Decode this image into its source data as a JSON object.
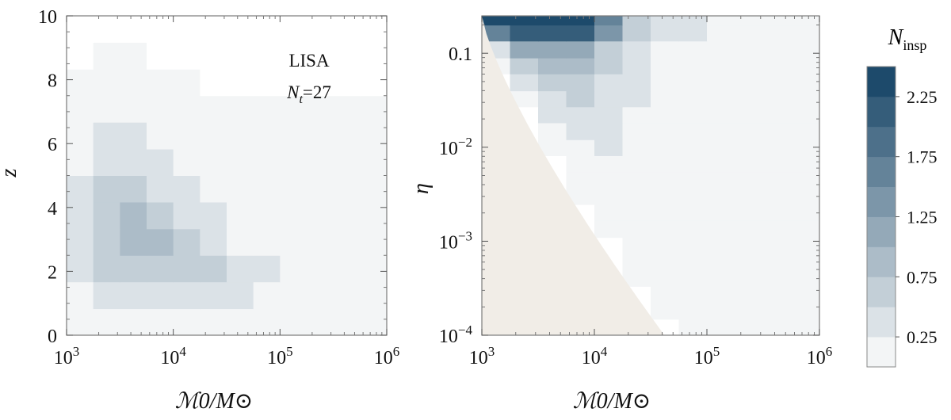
{
  "chart_data": [
    {
      "type": "heatmap",
      "panel": "left",
      "annotation": {
        "line1": "LISA",
        "line2_symbol": "N",
        "line2_sub": "t",
        "line2_value": "=27"
      },
      "xlabel": "ℳ0/M⊙",
      "ylabel": "z",
      "x_scale": "log",
      "xlim": [
        1000,
        1000000
      ],
      "ylim": [
        0,
        10
      ],
      "xticks": [
        {
          "value": 1000,
          "base": "10",
          "exp": "3"
        },
        {
          "value": 10000,
          "base": "10",
          "exp": "4"
        },
        {
          "value": 100000,
          "base": "10",
          "exp": "5"
        },
        {
          "value": 1000000,
          "base": "10",
          "exp": "6"
        }
      ],
      "yticks": [
        0,
        2,
        4,
        6,
        8,
        10
      ],
      "x_edges_log10": [
        3,
        3.25,
        3.5,
        3.75,
        4,
        4.25,
        4.5,
        4.75,
        5,
        5.25,
        5.5,
        5.75,
        6
      ],
      "y_edges": [
        0,
        0.83,
        1.67,
        2.5,
        3.33,
        4.17,
        5,
        5.83,
        6.67,
        7.5,
        8.33,
        9.17,
        10
      ],
      "values": [
        [
          0.05,
          0.08,
          0.1,
          0.1,
          0.15,
          0.12,
          0.1,
          0.07,
          0.05,
          0.04,
          0.03,
          0.02
        ],
        [
          0.18,
          0.25,
          0.3,
          0.35,
          0.4,
          0.4,
          0.32,
          0.2,
          0.1,
          0.08,
          0.06,
          0.05
        ],
        [
          0.3,
          0.55,
          0.6,
          0.6,
          0.55,
          0.5,
          0.42,
          0.25,
          0.12,
          0.1,
          0.08,
          0.06
        ],
        [
          0.35,
          0.65,
          0.75,
          0.75,
          0.55,
          0.4,
          0.22,
          0.15,
          0.1,
          0.08,
          0.06,
          0.05
        ],
        [
          0.3,
          0.65,
          0.8,
          0.65,
          0.45,
          0.3,
          0.2,
          0.12,
          0.08,
          0.06,
          0.05,
          0.04
        ],
        [
          0.25,
          0.55,
          0.6,
          0.45,
          0.3,
          0.22,
          0.15,
          0.1,
          0.06,
          0.05,
          0.04,
          0.03
        ],
        [
          0.2,
          0.45,
          0.45,
          0.3,
          0.2,
          0.12,
          0.1,
          0.06,
          0.04,
          0.03,
          0.03,
          0.02
        ],
        [
          0.15,
          0.3,
          0.25,
          0.15,
          0.08,
          0.06,
          0.05,
          0.03,
          0.02,
          0.02,
          0.02,
          0.01
        ],
        [
          0.1,
          0.2,
          0.15,
          0.08,
          0.05,
          0.03,
          0.02,
          0.02,
          0.01,
          0.01,
          0.01,
          0.01
        ],
        [
          0.05,
          0.1,
          0.08,
          0.04,
          0.02,
          0.0,
          0.0,
          0.0,
          0.0,
          0.0,
          0.0,
          0.0
        ],
        [
          0.0,
          0.05,
          0.05,
          0.0,
          0.0,
          0.0,
          0.0,
          0.0,
          0.0,
          0.0,
          0.0,
          0.0
        ],
        [
          0.0,
          0.0,
          0.0,
          0.0,
          0.0,
          0.0,
          0.0,
          0.0,
          0.0,
          0.0,
          0.0,
          0.0
        ]
      ]
    },
    {
      "type": "heatmap",
      "panel": "right",
      "xlabel": "ℳ0/M⊙",
      "ylabel": "η",
      "x_scale": "log",
      "y_scale": "log",
      "xlim": [
        1000,
        1000000
      ],
      "ylim": [
        0.0001,
        0.25
      ],
      "xticks": [
        {
          "value": 1000,
          "base": "10",
          "exp": "3"
        },
        {
          "value": 10000,
          "base": "10",
          "exp": "4"
        },
        {
          "value": 100000,
          "base": "10",
          "exp": "5"
        },
        {
          "value": 1000000,
          "base": "10",
          "exp": "6"
        }
      ],
      "yticks": [
        {
          "value": 0.1,
          "text": "0.1",
          "base": "",
          "exp": ""
        },
        {
          "value": 0.01,
          "text": "",
          "base": "10",
          "exp": "−2"
        },
        {
          "value": 0.001,
          "text": "",
          "base": "10",
          "exp": "−3"
        },
        {
          "value": 0.0001,
          "text": "",
          "base": "10",
          "exp": "−4"
        }
      ],
      "excluded_region": "η below a minimum set by ℳ0 (lower-left, shaded beige)",
      "x_edges_log10": [
        3,
        3.25,
        3.5,
        3.75,
        4,
        4.25,
        4.5,
        4.75,
        5,
        5.25,
        5.5,
        5.75,
        6
      ],
      "y_edges_log10": [
        -4,
        -3.83,
        -3.65,
        -3.48,
        -3.3,
        -3.13,
        -2.96,
        -2.78,
        -2.61,
        -2.44,
        -2.26,
        -2.09,
        -1.92,
        -1.74,
        -1.57,
        -1.4,
        -1.22,
        -1.05,
        -0.87,
        -0.7,
        -0.6
      ],
      "values": [
        [
          0.0,
          0.0,
          0.0,
          0.0,
          0.0,
          0.0,
          0.0,
          0.02,
          0.05,
          0.03,
          0.02,
          0.01
        ],
        [
          0.0,
          0.0,
          0.0,
          0.0,
          0.0,
          0.0,
          0.03,
          0.08,
          0.05,
          0.03,
          0.02,
          0.01
        ],
        [
          0.0,
          0.0,
          0.0,
          0.0,
          0.0,
          0.0,
          0.05,
          0.1,
          0.06,
          0.04,
          0.02,
          0.01
        ],
        [
          0.0,
          0.0,
          0.0,
          0.0,
          0.0,
          0.02,
          0.08,
          0.1,
          0.06,
          0.04,
          0.02,
          0.01
        ],
        [
          0.0,
          0.0,
          0.0,
          0.0,
          0.0,
          0.05,
          0.1,
          0.12,
          0.06,
          0.04,
          0.02,
          0.01
        ],
        [
          0.0,
          0.0,
          0.0,
          0.0,
          0.0,
          0.08,
          0.12,
          0.12,
          0.06,
          0.04,
          0.02,
          0.01
        ],
        [
          0.0,
          0.0,
          0.0,
          0.0,
          0.05,
          0.1,
          0.12,
          0.1,
          0.06,
          0.04,
          0.02,
          0.01
        ],
        [
          0.0,
          0.0,
          0.0,
          0.0,
          0.1,
          0.1,
          0.12,
          0.1,
          0.06,
          0.04,
          0.02,
          0.01
        ],
        [
          0.0,
          0.0,
          0.0,
          0.05,
          0.12,
          0.12,
          0.12,
          0.1,
          0.06,
          0.04,
          0.02,
          0.01
        ],
        [
          0.0,
          0.0,
          0.0,
          0.1,
          0.15,
          0.12,
          0.12,
          0.1,
          0.06,
          0.04,
          0.02,
          0.01
        ],
        [
          0.0,
          0.0,
          0.0,
          0.15,
          0.2,
          0.15,
          0.12,
          0.1,
          0.06,
          0.04,
          0.02,
          0.01
        ],
        [
          0.0,
          0.0,
          0.05,
          0.2,
          0.3,
          0.18,
          0.15,
          0.1,
          0.06,
          0.04,
          0.02,
          0.01
        ],
        [
          0.0,
          0.0,
          0.15,
          0.3,
          0.3,
          0.2,
          0.15,
          0.1,
          0.08,
          0.05,
          0.03,
          0.01
        ],
        [
          0.0,
          0.0,
          0.3,
          0.4,
          0.35,
          0.2,
          0.15,
          0.12,
          0.08,
          0.05,
          0.03,
          0.01
        ],
        [
          0.0,
          0.1,
          0.45,
          0.55,
          0.4,
          0.25,
          0.18,
          0.12,
          0.08,
          0.05,
          0.03,
          0.01
        ],
        [
          0.0,
          0.25,
          0.65,
          0.7,
          0.45,
          0.25,
          0.18,
          0.12,
          0.08,
          0.05,
          0.03,
          0.01
        ],
        [
          0.1,
          0.55,
          0.95,
          0.9,
          0.55,
          0.3,
          0.2,
          0.15,
          0.1,
          0.06,
          0.03,
          0.02
        ],
        [
          0.4,
          1.0,
          1.2,
          1.1,
          0.6,
          0.35,
          0.22,
          0.15,
          0.1,
          0.06,
          0.04,
          0.02
        ],
        [
          1.5,
          2.0,
          2.1,
          2.0,
          1.4,
          0.6,
          0.4,
          0.25,
          0.15,
          0.1,
          0.06,
          0.04
        ],
        [
          2.3,
          2.4,
          2.4,
          2.3,
          1.5,
          0.7,
          0.45,
          0.3,
          0.18,
          0.12,
          0.08,
          0.05
        ]
      ]
    }
  ],
  "colorbar": {
    "title_symbol": "N",
    "title_sub": "insp",
    "min": 0,
    "max": 2.5,
    "levels": 10,
    "ticks": [
      {
        "value": 0.25,
        "text": "0.25"
      },
      {
        "value": 0.75,
        "text": "0.75"
      },
      {
        "value": 1.25,
        "text": "1.25"
      },
      {
        "value": 1.75,
        "text": "1.75"
      },
      {
        "value": 2.25,
        "text": "2.25"
      }
    ]
  },
  "colors": {
    "low": "#f3f5f6",
    "high": "#1d4a6b",
    "excluded": "#f1ede7",
    "frame": "#7a7a7a"
  }
}
